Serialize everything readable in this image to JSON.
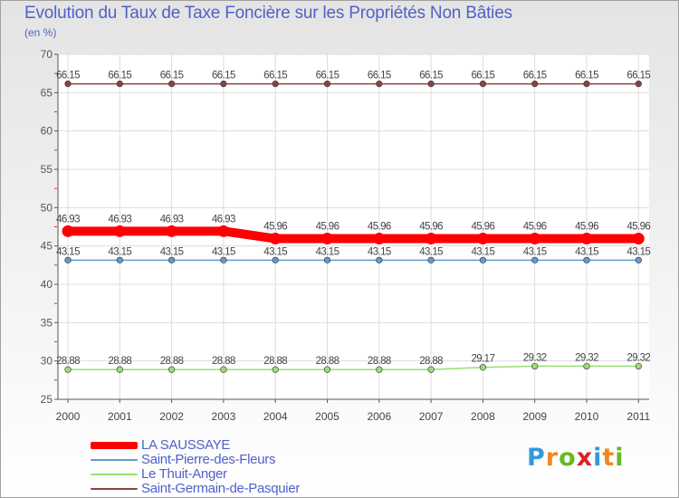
{
  "chart_data": {
    "type": "line",
    "title": "Evolution du Taux de Taxe Foncière sur les Propriétés Non Bâties",
    "ylabel": "(en %)",
    "categories": [
      "2000",
      "2001",
      "2002",
      "2003",
      "2004",
      "2005",
      "2006",
      "2007",
      "2008",
      "2009",
      "2010",
      "2011"
    ],
    "ylim": [
      25,
      70
    ],
    "yticks": [
      25,
      30,
      35,
      40,
      45,
      50,
      55,
      60,
      65,
      70
    ],
    "series": [
      {
        "name": "LA SAUSSAYE",
        "color": "#ff0000",
        "emphasis": true,
        "values": [
          46.93,
          46.93,
          46.93,
          46.93,
          45.96,
          45.96,
          45.96,
          45.96,
          45.96,
          45.96,
          45.96,
          45.96
        ],
        "labels": [
          "46.93",
          "46.93",
          "46.93",
          "46.93",
          "45.96",
          "45.96",
          "45.96",
          "45.96",
          "45.96",
          "45.96",
          "45.96",
          "45.96"
        ]
      },
      {
        "name": "Saint-Pierre-des-Fleurs",
        "color": "#6699cc",
        "emphasis": false,
        "values": [
          43.15,
          43.15,
          43.15,
          43.15,
          43.15,
          43.15,
          43.15,
          43.15,
          43.15,
          43.15,
          43.15,
          43.15
        ],
        "labels": [
          "43.15",
          "43.15",
          "43.15",
          "43.15",
          "43.15",
          "43.15",
          "43.15",
          "43.15",
          "43.15",
          "43.15",
          "43.15",
          "43.15"
        ]
      },
      {
        "name": "Le Thuit-Anger",
        "color": "#99dd77",
        "emphasis": false,
        "values": [
          28.88,
          28.88,
          28.88,
          28.88,
          28.88,
          28.88,
          28.88,
          28.88,
          29.17,
          29.32,
          29.32,
          29.32
        ],
        "labels": [
          "28.88",
          "28.88",
          "28.88",
          "28.88",
          "28.88",
          "28.88",
          "28.88",
          "28.88",
          "29.17",
          "29.32",
          "29.32",
          "29.32"
        ]
      },
      {
        "name": "Saint-Germain-de-Pasquier",
        "color": "#884444",
        "emphasis": false,
        "values": [
          66.15,
          66.15,
          66.15,
          66.15,
          66.15,
          66.15,
          66.15,
          66.15,
          66.15,
          66.15,
          66.15,
          66.15
        ],
        "labels": [
          "66.15",
          "66.15",
          "66.15",
          "66.15",
          "66.15",
          "66.15",
          "66.15",
          "66.15",
          "66.15",
          "66.15",
          "66.15",
          "66.15"
        ]
      }
    ]
  },
  "logo": {
    "letters": [
      "P",
      "r",
      "o",
      "x",
      "i",
      "t",
      "i"
    ],
    "colors": [
      "#3399dd",
      "#ee8822",
      "#66bb22",
      "#dd2222",
      "#3399dd",
      "#ee8822",
      "#66bb22"
    ]
  }
}
